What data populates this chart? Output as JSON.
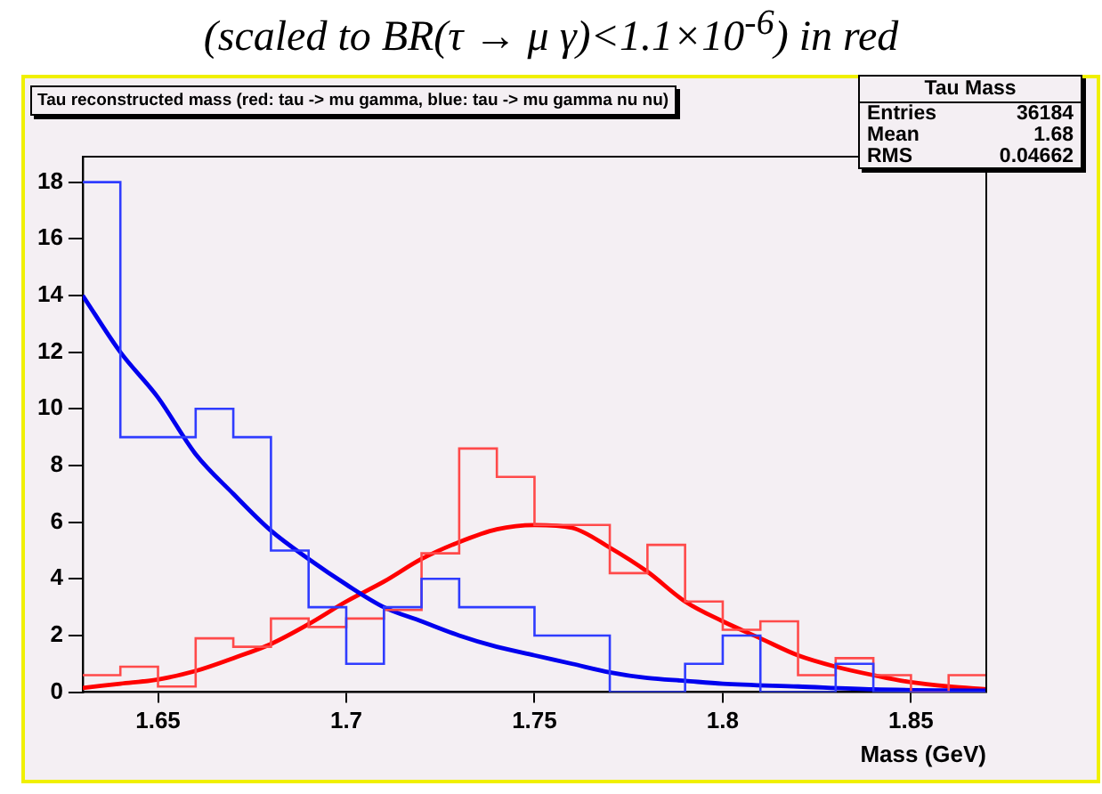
{
  "chart_data": {
    "type": "histogram",
    "title": "(scaled to BR(τ → μ γ)<1.1×10$^{-6}$) in red",
    "subtitle": "Tau reconstructed mass (red: tau -> mu gamma, blue: tau -> mu gamma nu nu)",
    "xlabel": "Mass (GeV)",
    "annotations": [
      "Tau Mass",
      "Entries 36184",
      "Mean 1.68",
      "RMS 0.04662"
    ],
    "bins": [
      1.63,
      1.64,
      1.65,
      1.66,
      1.67,
      1.68,
      1.69,
      1.7,
      1.71,
      1.72,
      1.73,
      1.74,
      1.75,
      1.76,
      1.77,
      1.78,
      1.79,
      1.8,
      1.81,
      1.82,
      1.83,
      1.84,
      1.85,
      1.86,
      1.87
    ],
    "series": [
      {
        "color": "#2f3cff",
        "values": [
          18,
          9,
          9,
          10,
          9,
          5,
          3,
          1,
          3,
          4,
          3,
          3,
          2,
          2,
          0,
          0,
          1,
          2,
          0,
          0,
          1,
          0,
          0,
          0
        ]
      },
      {
        "color": "#ff4a4a",
        "values": [
          0.6,
          0.9,
          0.2,
          1.9,
          1.6,
          2.6,
          2.3,
          2.6,
          2.9,
          4.9,
          8.6,
          7.6,
          5.9,
          5.9,
          4.2,
          5.2,
          3.2,
          2.2,
          2.5,
          0.6,
          1.2,
          0.6,
          0,
          0.6
        ]
      },
      {
        "type": "line",
        "color": "#0000ee",
        "x": [
          1.63,
          1.64,
          1.65,
          1.66,
          1.67,
          1.68,
          1.69,
          1.7,
          1.71,
          1.72,
          1.73,
          1.74,
          1.75,
          1.76,
          1.77,
          1.78,
          1.79,
          1.8,
          1.82,
          1.84,
          1.87
        ],
        "values": [
          14,
          12,
          10.4,
          8.4,
          7,
          5.7,
          4.7,
          3.8,
          3,
          2.5,
          2,
          1.6,
          1.3,
          1,
          0.7,
          0.5,
          0.4,
          0.3,
          0.2,
          0.1,
          0.05
        ]
      },
      {
        "type": "line",
        "color": "#ff0000",
        "x": [
          1.63,
          1.64,
          1.65,
          1.66,
          1.67,
          1.68,
          1.69,
          1.7,
          1.71,
          1.72,
          1.73,
          1.74,
          1.75,
          1.76,
          1.77,
          1.78,
          1.79,
          1.8,
          1.81,
          1.82,
          1.83,
          1.84,
          1.85,
          1.86,
          1.87
        ],
        "values": [
          0.15,
          0.3,
          0.45,
          0.75,
          1.2,
          1.7,
          2.4,
          3.2,
          3.9,
          4.7,
          5.3,
          5.75,
          5.9,
          5.8,
          5.1,
          4.25,
          3.2,
          2.5,
          1.9,
          1.3,
          0.9,
          0.6,
          0.35,
          0.2,
          0.1
        ]
      }
    ],
    "xlim": [
      1.63,
      1.87
    ],
    "xticks": [
      1.65,
      1.7,
      1.75,
      1.8,
      1.85
    ],
    "ylim": [
      0,
      18.9
    ],
    "yticks": [
      0,
      2,
      4,
      6,
      8,
      10,
      12,
      14,
      16,
      18
    ],
    "grid": false,
    "legend": false,
    "marker": "none",
    "line_style": "solid"
  }
}
